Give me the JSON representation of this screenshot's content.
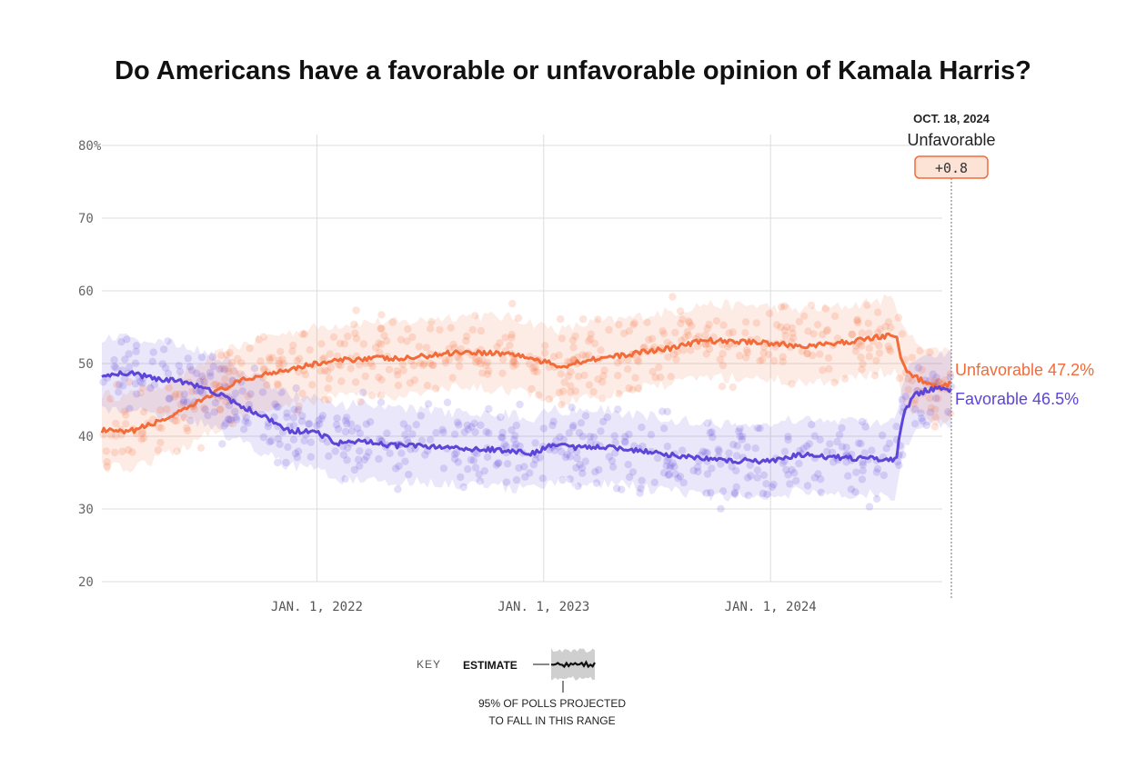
{
  "chart_data": {
    "type": "line",
    "title": "Do Americans have a favorable or unfavorable opinion of Kamala Harris?",
    "ylim": [
      20,
      80
    ],
    "y_ticks": [
      "20",
      "30",
      "40",
      "50",
      "60",
      "70",
      "80%"
    ],
    "x_ticks": [
      {
        "label": "JAN. 1, 2022",
        "date": "2022-01-01"
      },
      {
        "label": "JAN. 1, 2023",
        "date": "2023-01-01"
      },
      {
        "label": "JAN. 1, 2024",
        "date": "2024-01-01"
      }
    ],
    "x_range": [
      "2021-01-20",
      "2024-10-18"
    ],
    "grid": true,
    "series": [
      {
        "name": "Unfavorable",
        "color": "#f26b38",
        "end_label": "Unfavorable 47.2%",
        "points": [
          [
            "2021-01-20",
            40.8
          ],
          [
            "2021-03-01",
            40.5
          ],
          [
            "2021-04-15",
            41.8
          ],
          [
            "2021-06-01",
            43.5
          ],
          [
            "2021-07-15",
            45.8
          ],
          [
            "2021-09-01",
            47.6
          ],
          [
            "2021-10-15",
            48.7
          ],
          [
            "2021-12-01",
            49.5
          ],
          [
            "2022-01-01",
            50.0
          ],
          [
            "2022-02-15",
            50.5
          ],
          [
            "2022-04-01",
            50.8
          ],
          [
            "2022-05-15",
            50.6
          ],
          [
            "2022-07-01",
            51.1
          ],
          [
            "2022-08-15",
            51.6
          ],
          [
            "2022-10-01",
            51.5
          ],
          [
            "2022-11-15",
            51.3
          ],
          [
            "2023-01-01",
            50.2
          ],
          [
            "2023-02-01",
            49.6
          ],
          [
            "2023-03-15",
            50.6
          ],
          [
            "2023-05-01",
            51.0
          ],
          [
            "2023-06-15",
            51.7
          ],
          [
            "2023-08-01",
            52.2
          ],
          [
            "2023-09-15",
            53.2
          ],
          [
            "2023-11-01",
            53.0
          ],
          [
            "2023-12-15",
            53.0
          ],
          [
            "2024-01-01",
            52.8
          ],
          [
            "2024-02-15",
            52.4
          ],
          [
            "2024-04-01",
            52.6
          ],
          [
            "2024-05-15",
            53.1
          ],
          [
            "2024-06-15",
            53.6
          ],
          [
            "2024-07-10",
            53.9
          ],
          [
            "2024-07-21",
            53.8
          ],
          [
            "2024-07-28",
            51.0
          ],
          [
            "2024-08-05",
            49.2
          ],
          [
            "2024-08-20",
            48.2
          ],
          [
            "2024-09-10",
            47.2
          ],
          [
            "2024-09-25",
            46.8
          ],
          [
            "2024-10-05",
            46.9
          ],
          [
            "2024-10-18",
            47.2
          ]
        ]
      },
      {
        "name": "Favorable",
        "color": "#5c45d8",
        "end_label": "Favorable 46.5%",
        "points": [
          [
            "2021-01-20",
            48.5
          ],
          [
            "2021-03-01",
            48.7
          ],
          [
            "2021-04-15",
            48.0
          ],
          [
            "2021-06-01",
            47.4
          ],
          [
            "2021-07-15",
            46.3
          ],
          [
            "2021-09-01",
            44.2
          ],
          [
            "2021-10-15",
            42.4
          ],
          [
            "2021-11-15",
            40.8
          ],
          [
            "2022-01-01",
            40.6
          ],
          [
            "2022-02-01",
            39.0
          ],
          [
            "2022-03-15",
            39.4
          ],
          [
            "2022-05-01",
            38.7
          ],
          [
            "2022-06-15",
            38.8
          ],
          [
            "2022-08-01",
            38.3
          ],
          [
            "2022-09-15",
            38.3
          ],
          [
            "2022-11-01",
            38.0
          ],
          [
            "2022-12-15",
            37.6
          ],
          [
            "2023-01-15",
            38.8
          ],
          [
            "2023-03-01",
            38.4
          ],
          [
            "2023-04-15",
            38.6
          ],
          [
            "2023-06-01",
            38.0
          ],
          [
            "2023-07-15",
            37.5
          ],
          [
            "2023-09-01",
            37.0
          ],
          [
            "2023-10-15",
            36.7
          ],
          [
            "2023-12-01",
            36.6
          ],
          [
            "2024-01-01",
            36.5
          ],
          [
            "2024-02-15",
            37.5
          ],
          [
            "2024-04-01",
            37.1
          ],
          [
            "2024-05-15",
            37.0
          ],
          [
            "2024-07-01",
            36.9
          ],
          [
            "2024-07-21",
            36.8
          ],
          [
            "2024-07-28",
            41.0
          ],
          [
            "2024-08-05",
            43.5
          ],
          [
            "2024-08-20",
            45.6
          ],
          [
            "2024-09-10",
            46.4
          ],
          [
            "2024-09-25",
            46.6
          ],
          [
            "2024-10-05",
            46.4
          ],
          [
            "2024-10-18",
            46.5
          ]
        ]
      }
    ],
    "annotation": {
      "date_label": "OCT. 18, 2024",
      "leader": "Unfavorable",
      "margin": "+0.8"
    },
    "key": {
      "heading": "KEY",
      "estimate": "ESTIMATE",
      "range_line1": "95% OF POLLS PROJECTED",
      "range_line2": "TO FALL IN THIS RANGE"
    }
  },
  "colors": {
    "unfavorable": "#f26b38",
    "favorable": "#5c45d8",
    "grid": "#dddddd"
  }
}
